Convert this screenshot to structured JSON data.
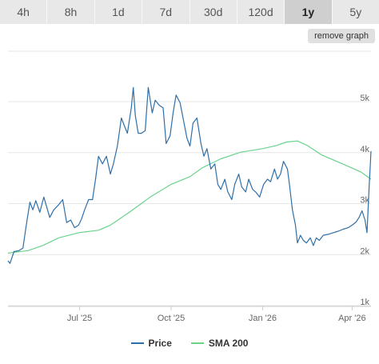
{
  "tabs": [
    {
      "label": "4h",
      "active": false
    },
    {
      "label": "8h",
      "active": false
    },
    {
      "label": "1d",
      "active": false
    },
    {
      "label": "7d",
      "active": false
    },
    {
      "label": "30d",
      "active": false
    },
    {
      "label": "120d",
      "active": false
    },
    {
      "label": "1y",
      "active": true
    },
    {
      "label": "5y",
      "active": false
    }
  ],
  "remove_graph_label": "remove graph",
  "colors": {
    "price": "#2f6fa8",
    "sma": "#6ad38c",
    "grid": "#e6e6e6",
    "axis_text": "#666666"
  },
  "chart_data": {
    "type": "line",
    "x_ticks": [
      "Jul '25",
      "Oct '25",
      "Jan '26",
      "Apr '26"
    ],
    "x_tick_positions": [
      "2025-07-01",
      "2025-10-01",
      "2026-01-01",
      "2026-04-01"
    ],
    "xlim": [
      "2025-04-20",
      "2026-04-20"
    ],
    "y_ticks": [
      "1k",
      "2k",
      "3k",
      "4k",
      "5k"
    ],
    "y_tick_values": [
      1000,
      2000,
      3000,
      4000,
      5000
    ],
    "ylim": [
      1000,
      5000
    ],
    "legend": [
      "Price",
      "SMA 200"
    ],
    "series": [
      {
        "name": "Price",
        "points": [
          [
            "2025-04-20",
            1800
          ],
          [
            "2025-04-22",
            1750
          ],
          [
            "2025-04-26",
            1980
          ],
          [
            "2025-05-01",
            2000
          ],
          [
            "2025-05-05",
            2050
          ],
          [
            "2025-05-08",
            2450
          ],
          [
            "2025-05-12",
            2950
          ],
          [
            "2025-05-15",
            2800
          ],
          [
            "2025-05-18",
            2980
          ],
          [
            "2025-05-22",
            2750
          ],
          [
            "2025-05-26",
            3050
          ],
          [
            "2025-06-01",
            2650
          ],
          [
            "2025-06-05",
            2800
          ],
          [
            "2025-06-10",
            2900
          ],
          [
            "2025-06-14",
            3000
          ],
          [
            "2025-06-18",
            2550
          ],
          [
            "2025-06-22",
            2600
          ],
          [
            "2025-06-26",
            2450
          ],
          [
            "2025-06-30",
            2500
          ],
          [
            "2025-07-03",
            2620
          ],
          [
            "2025-07-06",
            2800
          ],
          [
            "2025-07-10",
            3000
          ],
          [
            "2025-07-14",
            3000
          ],
          [
            "2025-07-17",
            3400
          ],
          [
            "2025-07-20",
            3850
          ],
          [
            "2025-07-24",
            3700
          ],
          [
            "2025-07-28",
            3850
          ],
          [
            "2025-08-01",
            3500
          ],
          [
            "2025-08-04",
            3700
          ],
          [
            "2025-08-08",
            4050
          ],
          [
            "2025-08-12",
            4600
          ],
          [
            "2025-08-15",
            4450
          ],
          [
            "2025-08-18",
            4300
          ],
          [
            "2025-08-22",
            4800
          ],
          [
            "2025-08-24",
            5200
          ],
          [
            "2025-08-26",
            4650
          ],
          [
            "2025-08-29",
            4300
          ],
          [
            "2025-09-01",
            4300
          ],
          [
            "2025-09-05",
            4350
          ],
          [
            "2025-09-08",
            5200
          ],
          [
            "2025-09-12",
            4700
          ],
          [
            "2025-09-15",
            4950
          ],
          [
            "2025-09-19",
            4850
          ],
          [
            "2025-09-23",
            4800
          ],
          [
            "2025-09-26",
            4100
          ],
          [
            "2025-09-30",
            4250
          ],
          [
            "2025-10-03",
            4700
          ],
          [
            "2025-10-06",
            5050
          ],
          [
            "2025-10-10",
            4900
          ],
          [
            "2025-10-13",
            4600
          ],
          [
            "2025-10-17",
            4200
          ],
          [
            "2025-10-20",
            4050
          ],
          [
            "2025-10-23",
            4500
          ],
          [
            "2025-10-27",
            4600
          ],
          [
            "2025-10-31",
            4100
          ],
          [
            "2025-11-03",
            3850
          ],
          [
            "2025-11-06",
            4000
          ],
          [
            "2025-11-10",
            3600
          ],
          [
            "2025-11-14",
            3700
          ],
          [
            "2025-11-17",
            3300
          ],
          [
            "2025-11-20",
            3200
          ],
          [
            "2025-11-24",
            3400
          ],
          [
            "2025-11-27",
            3150
          ],
          [
            "2025-12-01",
            3000
          ],
          [
            "2025-12-04",
            3300
          ],
          [
            "2025-12-08",
            3500
          ],
          [
            "2025-12-11",
            3250
          ],
          [
            "2025-12-15",
            3150
          ],
          [
            "2025-12-18",
            3400
          ],
          [
            "2025-12-22",
            3200
          ],
          [
            "2025-12-25",
            3150
          ],
          [
            "2025-12-29",
            3050
          ],
          [
            "2026-01-02",
            3300
          ],
          [
            "2026-01-06",
            3400
          ],
          [
            "2026-01-09",
            3350
          ],
          [
            "2026-01-13",
            3600
          ],
          [
            "2026-01-16",
            3400
          ],
          [
            "2026-01-19",
            3500
          ],
          [
            "2026-01-22",
            3750
          ],
          [
            "2026-01-26",
            3600
          ],
          [
            "2026-01-28",
            3300
          ],
          [
            "2026-01-31",
            2800
          ],
          [
            "2026-02-03",
            2500
          ],
          [
            "2026-02-05",
            2150
          ],
          [
            "2026-02-08",
            2300
          ],
          [
            "2026-02-11",
            2200
          ],
          [
            "2026-02-14",
            2150
          ],
          [
            "2026-02-18",
            2250
          ],
          [
            "2026-02-21",
            2100
          ],
          [
            "2026-02-24",
            2250
          ],
          [
            "2026-02-27",
            2200
          ],
          [
            "2026-03-03",
            2300
          ],
          [
            "2026-03-08",
            2320
          ],
          [
            "2026-03-13",
            2350
          ],
          [
            "2026-03-18",
            2380
          ],
          [
            "2026-03-23",
            2420
          ],
          [
            "2026-03-28",
            2450
          ],
          [
            "2026-04-01",
            2500
          ],
          [
            "2026-04-05",
            2560
          ],
          [
            "2026-04-08",
            2650
          ],
          [
            "2026-04-11",
            2780
          ],
          [
            "2026-04-14",
            2600
          ],
          [
            "2026-04-16",
            2350
          ],
          [
            "2026-04-18",
            3200
          ],
          [
            "2026-04-20",
            3950
          ]
        ]
      },
      {
        "name": "SMA 200",
        "points": [
          [
            "2025-04-20",
            1950
          ],
          [
            "2025-05-10",
            2000
          ],
          [
            "2025-05-25",
            2100
          ],
          [
            "2025-06-10",
            2250
          ],
          [
            "2025-06-30",
            2350
          ],
          [
            "2025-07-20",
            2400
          ],
          [
            "2025-08-01",
            2500
          ],
          [
            "2025-08-20",
            2750
          ],
          [
            "2025-09-10",
            3050
          ],
          [
            "2025-10-01",
            3300
          ],
          [
            "2025-10-20",
            3450
          ],
          [
            "2025-11-01",
            3620
          ],
          [
            "2025-11-20",
            3800
          ],
          [
            "2025-12-10",
            3930
          ],
          [
            "2026-01-01",
            4000
          ],
          [
            "2026-01-15",
            4060
          ],
          [
            "2026-01-25",
            4130
          ],
          [
            "2026-02-05",
            4150
          ],
          [
            "2026-02-15",
            4060
          ],
          [
            "2026-03-01",
            3880
          ],
          [
            "2026-03-20",
            3720
          ],
          [
            "2026-04-10",
            3540
          ],
          [
            "2026-04-20",
            3400
          ]
        ]
      }
    ]
  }
}
